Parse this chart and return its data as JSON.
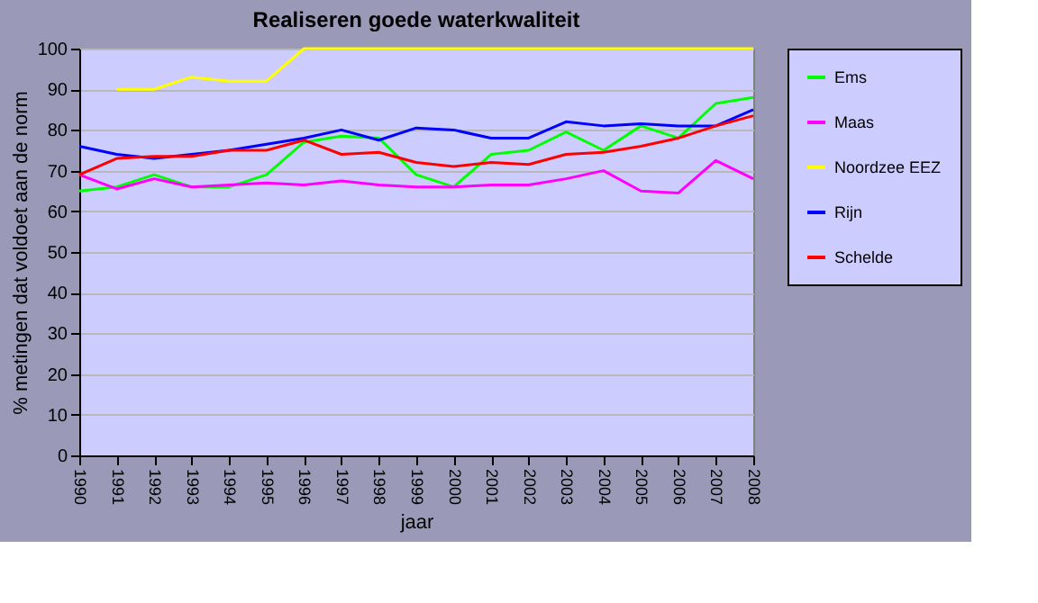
{
  "chart_data": {
    "type": "line",
    "title": "Realiseren goede waterkwaliteit",
    "xlabel": "jaar",
    "ylabel": "% metingen dat voldoet aan de norm",
    "categories": [
      "1990",
      "1991",
      "1992",
      "1993",
      "1994",
      "1995",
      "1996",
      "1997",
      "1998",
      "1999",
      "2000",
      "2001",
      "2002",
      "2003",
      "2004",
      "2005",
      "2006",
      "2007",
      "2008"
    ],
    "series": [
      {
        "name": "Ems",
        "color": "#00ff00",
        "values": [
          65,
          66,
          69,
          66,
          66,
          69,
          77,
          78.5,
          78,
          69,
          66,
          74,
          75,
          79.5,
          75,
          81,
          78,
          86.5,
          88
        ]
      },
      {
        "name": "Maas",
        "color": "#ff00ff",
        "values": [
          69,
          65.5,
          68,
          66,
          66.5,
          67,
          66.5,
          67.5,
          66.5,
          66,
          66,
          66.5,
          66.5,
          68,
          70,
          65,
          64.5,
          72.5,
          68
        ]
      },
      {
        "name": "Noordzee EEZ",
        "color": "#ffff00",
        "values": [
          null,
          90,
          90,
          93,
          92,
          92,
          100,
          100,
          100,
          100,
          100,
          100,
          100,
          100,
          100,
          100,
          100,
          100,
          100
        ]
      },
      {
        "name": "Rijn",
        "color": "#0000ff",
        "values": [
          76,
          74,
          73,
          74,
          75,
          76.5,
          78,
          80,
          77.5,
          80.5,
          80,
          78,
          78,
          82,
          81,
          81.5,
          81,
          81,
          85
        ]
      },
      {
        "name": "Schelde",
        "color": "#ff0000",
        "values": [
          69,
          73,
          73.5,
          73.5,
          75,
          75,
          77.5,
          74,
          74.5,
          72,
          71,
          72,
          71.5,
          74,
          74.5,
          76,
          78,
          81,
          83.5
        ]
      }
    ],
    "ylim": [
      0,
      100
    ],
    "yticks": [
      0,
      10,
      20,
      30,
      40,
      50,
      60,
      70,
      80,
      90,
      100
    ],
    "grid": "y",
    "legend": "right",
    "marker": "none",
    "line_style": "solid"
  }
}
